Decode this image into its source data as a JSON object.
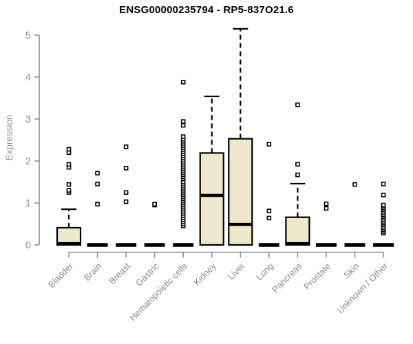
{
  "chart_data": {
    "type": "boxplot",
    "title": "ENSG00000235794 - RP5-837O21.6",
    "xlabel": "",
    "ylabel": "Expression",
    "ylim": [
      0,
      5.2
    ],
    "yticks": [
      0,
      1,
      2,
      3,
      4,
      5
    ],
    "grid": false,
    "legend": null,
    "categories": [
      "Bladder",
      "Brain",
      "Breast",
      "Gastric",
      "Hematopoietic cells",
      "Kidney",
      "Liver",
      "Lung",
      "Pancreas",
      "Prostate",
      "Skin",
      "Unknown / Other"
    ],
    "boxes": [
      {
        "category": "Bladder",
        "q1": 0,
        "median": 0.03,
        "q3": 0.41,
        "whisker_low": 0,
        "whisker_high": 0.85,
        "outliers": [
          1.25,
          1.3,
          1.44,
          1.85,
          1.92,
          2.2,
          2.28
        ]
      },
      {
        "category": "Brain",
        "q1": 0,
        "median": 0,
        "q3": 0,
        "whisker_low": 0,
        "whisker_high": 0,
        "outliers": [
          0.97,
          1.45,
          1.71
        ]
      },
      {
        "category": "Breast",
        "q1": 0,
        "median": 0,
        "q3": 0,
        "whisker_low": 0,
        "whisker_high": 0,
        "outliers": [
          1.03,
          1.25,
          1.83,
          2.34
        ]
      },
      {
        "category": "Gastric",
        "q1": 0,
        "median": 0,
        "q3": 0,
        "whisker_low": 0,
        "whisker_high": 0,
        "outliers": [
          0.95,
          0.97
        ]
      },
      {
        "category": "Hematopoietic cells",
        "q1": 0,
        "median": 0,
        "q3": 0,
        "whisker_low": 0,
        "whisker_high": 0,
        "outliers": [
          0.45,
          0.5,
          0.55,
          0.6,
          0.65,
          0.7,
          0.75,
          0.8,
          0.85,
          0.9,
          0.95,
          1.0,
          1.05,
          1.1,
          1.15,
          1.2,
          1.25,
          1.3,
          1.35,
          1.4,
          1.45,
          1.5,
          1.57,
          1.62,
          1.67,
          1.72,
          1.77,
          1.82,
          1.87,
          1.92,
          1.97,
          2.02,
          2.07,
          2.12,
          2.17,
          2.22,
          2.27,
          2.32,
          2.37,
          2.42,
          2.47,
          2.52,
          2.58,
          2.85,
          2.94,
          3.88
        ]
      },
      {
        "category": "Kidney",
        "q1": 0,
        "median": 1.18,
        "q3": 2.19,
        "whisker_low": 0,
        "whisker_high": 3.54,
        "outliers": []
      },
      {
        "category": "Liver",
        "q1": 0,
        "median": 0.49,
        "q3": 2.53,
        "whisker_low": 0,
        "whisker_high": 5.15,
        "outliers": []
      },
      {
        "category": "Lung",
        "q1": 0,
        "median": 0,
        "q3": 0,
        "whisker_low": 0,
        "whisker_high": 0,
        "outliers": [
          0.64,
          0.81,
          2.4
        ]
      },
      {
        "category": "Pancreas",
        "q1": 0,
        "median": 0.03,
        "q3": 0.66,
        "whisker_low": 0,
        "whisker_high": 1.46,
        "outliers": [
          1.67,
          1.92,
          3.34
        ]
      },
      {
        "category": "Prostate",
        "q1": 0,
        "median": 0,
        "q3": 0,
        "whisker_low": 0,
        "whisker_high": 0,
        "outliers": [
          0.87,
          0.98
        ]
      },
      {
        "category": "Skin",
        "q1": 0,
        "median": 0,
        "q3": 0,
        "whisker_low": 0,
        "whisker_high": 0,
        "outliers": [
          1.44
        ]
      },
      {
        "category": "Unknown / Other",
        "q1": 0,
        "median": 0,
        "q3": 0,
        "whisker_low": 0,
        "whisker_high": 0,
        "outliers": [
          0.28,
          0.32,
          0.36,
          0.4,
          0.44,
          0.48,
          0.52,
          0.56,
          0.6,
          0.64,
          0.68,
          0.72,
          0.76,
          0.8,
          0.84,
          0.88,
          0.92,
          0.95,
          1.19,
          1.45
        ]
      }
    ]
  },
  "colors": {
    "background": "#ffffff",
    "box_fill": "#EDE7CB",
    "box_stroke": "#000000",
    "median": "#000000",
    "axis_line": "#8f8f8f",
    "tick_label": "#8c9398",
    "category_label": "#8c8c8c",
    "title": "#000000",
    "outlier_fill": "#ffffff"
  }
}
